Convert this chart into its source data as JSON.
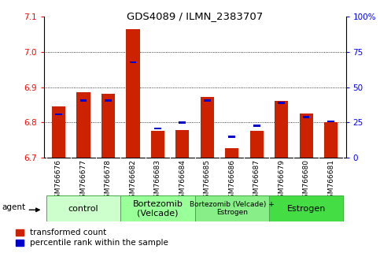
{
  "title": "GDS4089 / ILMN_2383707",
  "samples": [
    "GSM766676",
    "GSM766677",
    "GSM766678",
    "GSM766682",
    "GSM766683",
    "GSM766684",
    "GSM766685",
    "GSM766686",
    "GSM766687",
    "GSM766679",
    "GSM766680",
    "GSM766681"
  ],
  "red_values": [
    6.845,
    6.885,
    6.882,
    7.065,
    6.777,
    6.779,
    6.872,
    6.726,
    6.777,
    6.862,
    6.826,
    6.8
  ],
  "blue_pcts": [
    30,
    40,
    40,
    67,
    20,
    24,
    40,
    14,
    22,
    38,
    28,
    25
  ],
  "ymin": 6.7,
  "ymax": 7.1,
  "y2min": 0,
  "y2max": 100,
  "yticks_left": [
    6.7,
    6.8,
    6.9,
    7.0,
    7.1
  ],
  "yticks_right": [
    0,
    25,
    50,
    75,
    100
  ],
  "group_labels": [
    "control",
    "Bortezomib\n(Velcade)",
    "Bortezomib (Velcade) +\nEstrogen",
    "Estrogen"
  ],
  "group_starts": [
    0,
    3,
    6,
    9
  ],
  "group_ends": [
    3,
    6,
    9,
    12
  ],
  "group_colors": [
    "#ccffcc",
    "#99ff99",
    "#88ee88",
    "#44dd44"
  ],
  "legend_red": "transformed count",
  "legend_blue": "percentile rank within the sample",
  "red_color": "#cc2200",
  "blue_color": "#0000cc",
  "bg_color": "#cccccc"
}
